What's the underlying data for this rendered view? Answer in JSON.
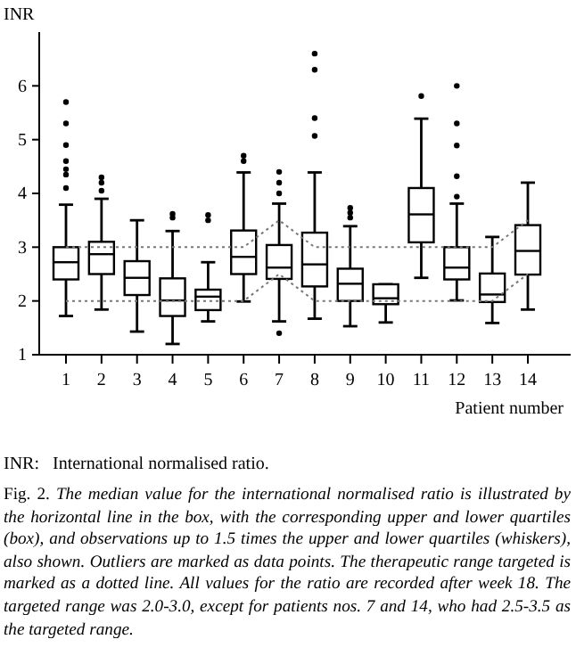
{
  "chart_data": {
    "type": "box",
    "ylabel": "INR",
    "xlabel": "Patient number",
    "categories": [
      "1",
      "2",
      "3",
      "4",
      "5",
      "6",
      "7",
      "8",
      "9",
      "10",
      "11",
      "12",
      "13",
      "14"
    ],
    "ylim": [
      1,
      7
    ],
    "yticks": [
      1,
      2,
      3,
      4,
      5,
      6
    ],
    "grid": false,
    "series": [
      {
        "color": "#000000",
        "boxes": [
          {
            "low": 1.72,
            "q1": 2.4,
            "median": 2.72,
            "q3": 3.0,
            "high": 3.79,
            "outliers": [
              4.1,
              4.35,
              4.45,
              4.6,
              4.9,
              5.3,
              5.7
            ]
          },
          {
            "low": 1.84,
            "q1": 2.5,
            "median": 2.87,
            "q3": 3.1,
            "high": 3.9,
            "outliers": [
              4.05,
              4.2,
              4.3
            ]
          },
          {
            "low": 1.43,
            "q1": 2.11,
            "median": 2.43,
            "q3": 2.74,
            "high": 3.5
          },
          {
            "low": 1.2,
            "q1": 1.72,
            "median": 2.01,
            "q3": 2.42,
            "high": 3.3,
            "outliers": [
              3.55,
              3.62
            ]
          },
          {
            "low": 1.62,
            "q1": 1.83,
            "median": 2.08,
            "q3": 2.21,
            "high": 2.72,
            "outliers": [
              3.5,
              3.6
            ]
          },
          {
            "low": 1.99,
            "q1": 2.5,
            "median": 2.82,
            "q3": 3.31,
            "high": 4.39,
            "outliers": [
              4.6,
              4.7
            ]
          },
          {
            "low": 1.62,
            "q1": 2.41,
            "median": 2.62,
            "q3": 3.04,
            "high": 3.81,
            "outliers": [
              1.4,
              4.0,
              4.2,
              4.4
            ]
          },
          {
            "low": 1.67,
            "q1": 2.27,
            "median": 2.68,
            "q3": 3.27,
            "high": 4.39,
            "outliers": [
              5.07,
              5.4,
              6.3,
              6.6
            ]
          },
          {
            "low": 1.53,
            "q1": 2.0,
            "median": 2.32,
            "q3": 2.6,
            "high": 3.39,
            "outliers": [
              3.55,
              3.64,
              3.73
            ]
          },
          {
            "low": 1.6,
            "q1": 1.94,
            "median": 2.05,
            "q3": 2.31,
            "high": 2.31
          },
          {
            "low": 2.43,
            "q1": 3.09,
            "median": 3.61,
            "q3": 4.1,
            "high": 5.39,
            "outliers": [
              5.81
            ]
          },
          {
            "low": 2.01,
            "q1": 2.4,
            "median": 2.62,
            "q3": 3.0,
            "high": 3.81,
            "outliers": [
              3.94,
              4.32,
              4.89,
              5.3,
              6.0
            ]
          },
          {
            "low": 1.59,
            "q1": 1.98,
            "median": 2.12,
            "q3": 2.51,
            "high": 3.19
          },
          {
            "low": 1.84,
            "q1": 2.49,
            "median": 2.93,
            "q3": 3.41,
            "high": 4.2
          }
        ]
      },
      {
        "type": "line",
        "color": "#777777",
        "line_style": "dotted",
        "marker": "none",
        "values": [
          2,
          2,
          2,
          2,
          2,
          2,
          2.5,
          2,
          2,
          2,
          2,
          2,
          2,
          2.5
        ]
      },
      {
        "type": "line",
        "color": "#777777",
        "line_style": "dotted",
        "marker": "none",
        "values": [
          3,
          3,
          3,
          3,
          3,
          3,
          3.5,
          3,
          3,
          3,
          3,
          3,
          3,
          3.5
        ]
      }
    ],
    "annotations": [
      "INR:   International normalised ratio.",
      "Fig. 2. The median value for the international normalised ratio is illustrated by the horizontal line in the box, with the corresponding upper and lower quartiles (box), and observations up to 1.5 times the upper and lower quartiles (whiskers), also shown. Outliers are marked as data points. The therapeutic range targeted is marked as a dotted line. All values for the ratio are recorded after week 18. The targeted range was 2.0-3.0, except for patients nos. 7 and 14, who had 2.5-3.5 as the targeted range."
    ]
  }
}
